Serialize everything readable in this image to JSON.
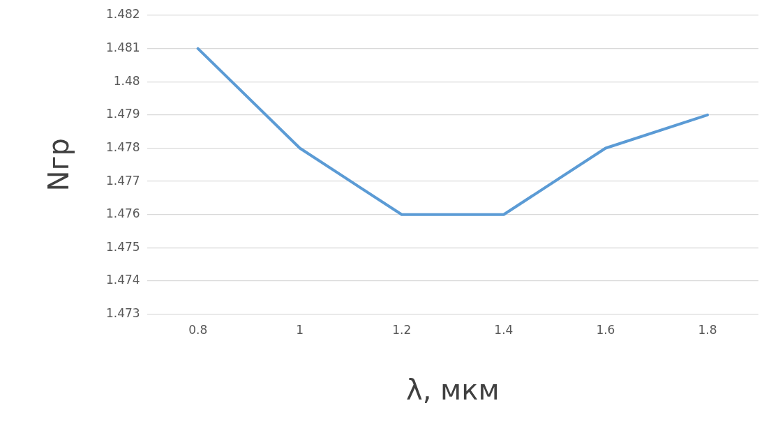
{
  "chart_data": {
    "type": "line",
    "xlabel": "λ, мкм",
    "ylabel": "Nгр",
    "categories": [
      "0.8",
      "1",
      "1.2",
      "1.4",
      "1.6",
      "1.8"
    ],
    "series": [
      {
        "color": "#5b9bd5",
        "values": [
          1.481,
          1.478,
          1.476,
          1.476,
          1.478,
          1.479
        ]
      }
    ],
    "ylim": [
      1.473,
      1.482
    ],
    "yticks": [
      1.473,
      1.474,
      1.475,
      1.476,
      1.477,
      1.478,
      1.479,
      1.48,
      1.481,
      1.482
    ],
    "grid": "y",
    "legend": false,
    "marker": "none",
    "line_style": "solid"
  }
}
